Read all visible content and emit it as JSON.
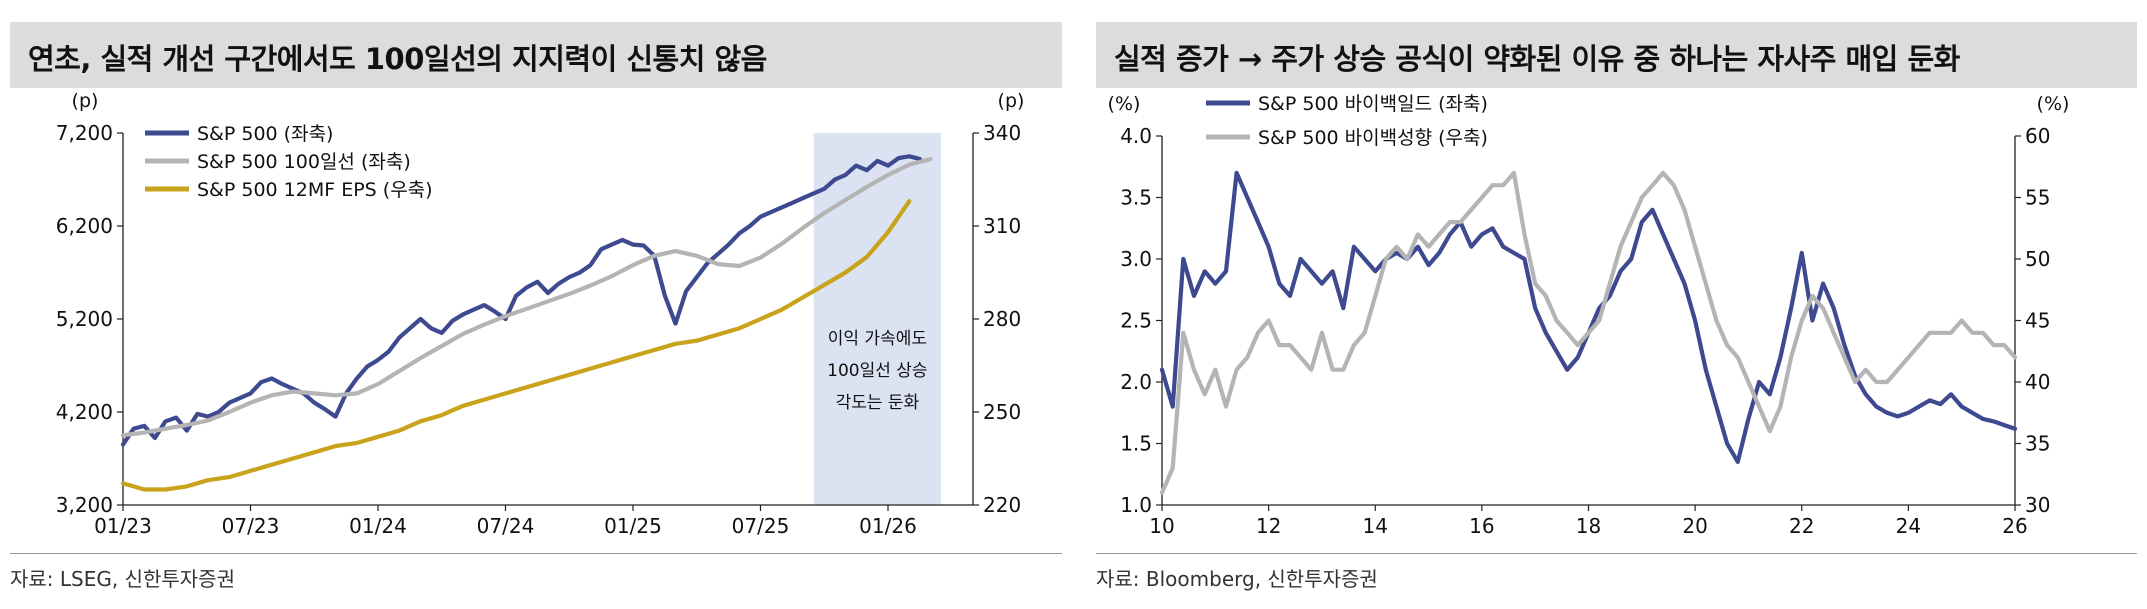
{
  "charts": [
    {
      "title": "연초, 실적 개선 구간에서도 100일선의 지지력이 신통치 않음",
      "source": "자료: LSEG, 신한투자증권",
      "chart_data": {
        "type": "line",
        "left_unit": "(p)",
        "right_unit": "(p)",
        "left_ylim": [
          3200,
          7200
        ],
        "left_yticks": [
          "3,200",
          "4,200",
          "5,200",
          "6,200",
          "7,200"
        ],
        "right_ylim": [
          220,
          340
        ],
        "right_yticks": [
          "220",
          "250",
          "280",
          "310",
          "340"
        ],
        "xlim": [
          0,
          40
        ],
        "xtick_positions": [
          0,
          6,
          12,
          18,
          24,
          30,
          36
        ],
        "xtick_labels": [
          "01/23",
          "07/23",
          "01/24",
          "07/24",
          "01/25",
          "07/25",
          "01/26"
        ],
        "shaded_region": {
          "from": 32.5,
          "to": 38.5,
          "color": "#dbe3f3"
        },
        "annotation": [
          "이익 가속에도",
          "100일선 상승",
          "각도는 둔화"
        ],
        "series": [
          {
            "name": "S&P 500 (좌축)",
            "color": "#3d4a8f",
            "axis": "left",
            "x": [
              0,
              0.5,
              1,
              1.5,
              2,
              2.5,
              3,
              3.5,
              4,
              4.5,
              5,
              5.5,
              6,
              6.5,
              7,
              7.5,
              8,
              8.5,
              9,
              9.5,
              10,
              10.5,
              11,
              11.5,
              12,
              12.5,
              13,
              13.5,
              14,
              14.5,
              15,
              15.5,
              16,
              16.5,
              17,
              17.5,
              18,
              18.5,
              19,
              19.5,
              20,
              20.5,
              21,
              21.5,
              22,
              22.5,
              23,
              23.5,
              24,
              24.5,
              25,
              25.5,
              26,
              26.5,
              27,
              27.5,
              28,
              28.5,
              29,
              29.5,
              30,
              30.5,
              31,
              31.5,
              32,
              32.5,
              33,
              33.5,
              34,
              34.5,
              35,
              35.5,
              36,
              36.5,
              37,
              37.5
            ],
            "y": [
              3850,
              4020,
              4050,
              3920,
              4100,
              4140,
              4000,
              4180,
              4150,
              4200,
              4300,
              4350,
              4400,
              4520,
              4560,
              4500,
              4450,
              4400,
              4300,
              4230,
              4150,
              4400,
              4560,
              4690,
              4760,
              4850,
              5000,
              5100,
              5200,
              5100,
              5050,
              5180,
              5250,
              5300,
              5350,
              5280,
              5200,
              5450,
              5540,
              5600,
              5480,
              5580,
              5650,
              5700,
              5780,
              5950,
              6000,
              6050,
              6000,
              5990,
              5880,
              5450,
              5150,
              5500,
              5650,
              5800,
              5900,
              6000,
              6120,
              6200,
              6300,
              6350,
              6400,
              6450,
              6500,
              6550,
              6600,
              6700,
              6750,
              6850,
              6800,
              6900,
              6850,
              6930,
              6950,
              6920
            ]
          },
          {
            "name": "S&P 500 100일선 (좌축)",
            "color": "#b4b4b4",
            "axis": "left",
            "x": [
              0,
              1,
              2,
              3,
              4,
              5,
              6,
              7,
              8,
              9,
              10,
              11,
              12,
              13,
              14,
              15,
              16,
              17,
              18,
              19,
              20,
              21,
              22,
              23,
              24,
              25,
              26,
              27,
              28,
              29,
              30,
              31,
              32,
              33,
              34,
              35,
              36,
              37,
              38
            ],
            "y": [
              3950,
              3980,
              4020,
              4060,
              4110,
              4200,
              4300,
              4380,
              4420,
              4400,
              4380,
              4400,
              4500,
              4640,
              4780,
              4910,
              5040,
              5140,
              5230,
              5310,
              5390,
              5470,
              5560,
              5660,
              5780,
              5880,
              5930,
              5880,
              5790,
              5770,
              5860,
              6010,
              6180,
              6340,
              6480,
              6620,
              6750,
              6860,
              6920
            ]
          },
          {
            "name": "S&P 500 12MF EPS (우축)",
            "color": "#c8a31b",
            "axis": "right",
            "x": [
              0,
              1,
              2,
              3,
              4,
              5,
              6,
              7,
              8,
              9,
              10,
              11,
              12,
              13,
              14,
              15,
              16,
              17,
              18,
              19,
              20,
              21,
              22,
              23,
              24,
              25,
              26,
              27,
              28,
              29,
              30,
              31,
              32,
              33,
              34,
              35,
              36,
              37
            ],
            "y": [
              227,
              225,
              225,
              226,
              228,
              229,
              231,
              233,
              235,
              237,
              239,
              240,
              242,
              244,
              247,
              249,
              252,
              254,
              256,
              258,
              260,
              262,
              264,
              266,
              268,
              270,
              272,
              273,
              275,
              277,
              280,
              283,
              287,
              291,
              295,
              300,
              308,
              318
            ]
          }
        ]
      }
    },
    {
      "title": "실적 증가 → 주가 상승 공식이 약화된 이유 중 하나는 자사주 매입 둔화",
      "source": "자료: Bloomberg, 신한투자증권",
      "chart_data": {
        "type": "line",
        "left_unit": "(%)",
        "right_unit": "(%)",
        "left_ylim": [
          1.0,
          4.0
        ],
        "left_yticks": [
          "1.0",
          "1.5",
          "2.0",
          "2.5",
          "3.0",
          "3.5",
          "4.0"
        ],
        "right_ylim": [
          30,
          60
        ],
        "right_yticks": [
          "30",
          "35",
          "40",
          "45",
          "50",
          "55",
          "60"
        ],
        "xlim": [
          10,
          26
        ],
        "xtick_positions": [
          10,
          12,
          14,
          16,
          18,
          20,
          22,
          24,
          26
        ],
        "xtick_labels": [
          "10",
          "12",
          "14",
          "16",
          "18",
          "20",
          "22",
          "24",
          "26"
        ],
        "series": [
          {
            "name": "S&P 500 바이백일드 (좌축)",
            "color": "#3d4a8f",
            "axis": "left",
            "x": [
              10,
              10.2,
              10.4,
              10.6,
              10.8,
              11,
              11.2,
              11.4,
              11.6,
              11.8,
              12,
              12.2,
              12.4,
              12.6,
              12.8,
              13,
              13.2,
              13.4,
              13.6,
              13.8,
              14,
              14.2,
              14.4,
              14.6,
              14.8,
              15,
              15.2,
              15.4,
              15.6,
              15.8,
              16,
              16.2,
              16.4,
              16.6,
              16.8,
              17,
              17.2,
              17.4,
              17.6,
              17.8,
              18,
              18.2,
              18.4,
              18.6,
              18.8,
              19,
              19.2,
              19.4,
              19.6,
              19.8,
              20,
              20.2,
              20.4,
              20.6,
              20.8,
              21,
              21.2,
              21.4,
              21.6,
              21.8,
              22,
              22.2,
              22.4,
              22.6,
              22.8,
              23,
              23.2,
              23.4,
              23.6,
              23.8,
              24,
              24.2,
              24.4,
              24.6,
              24.8,
              25,
              25.2,
              25.4,
              25.6,
              25.8,
              26
            ],
            "y": [
              2.1,
              1.8,
              3.0,
              2.7,
              2.9,
              2.8,
              2.9,
              3.7,
              3.5,
              3.3,
              3.1,
              2.8,
              2.7,
              3.0,
              2.9,
              2.8,
              2.9,
              2.6,
              3.1,
              3.0,
              2.9,
              3.0,
              3.05,
              3.0,
              3.1,
              2.95,
              3.05,
              3.2,
              3.3,
              3.1,
              3.2,
              3.25,
              3.1,
              3.05,
              3.0,
              2.6,
              2.4,
              2.25,
              2.1,
              2.2,
              2.4,
              2.6,
              2.7,
              2.9,
              3.0,
              3.3,
              3.4,
              3.2,
              3.0,
              2.8,
              2.5,
              2.1,
              1.8,
              1.5,
              1.35,
              1.7,
              2.0,
              1.9,
              2.2,
              2.6,
              3.05,
              2.5,
              2.8,
              2.6,
              2.3,
              2.05,
              1.9,
              1.8,
              1.75,
              1.72,
              1.75,
              1.8,
              1.85,
              1.82,
              1.9,
              1.8,
              1.75,
              1.7,
              1.68,
              1.65,
              1.62
            ]
          },
          {
            "name": "S&P 500 바이백성향 (우축)",
            "color": "#b4b4b4",
            "axis": "right",
            "x": [
              10,
              10.2,
              10.4,
              10.6,
              10.8,
              11,
              11.2,
              11.4,
              11.6,
              11.8,
              12,
              12.2,
              12.4,
              12.6,
              12.8,
              13,
              13.2,
              13.4,
              13.6,
              13.8,
              14,
              14.2,
              14.4,
              14.6,
              14.8,
              15,
              15.2,
              15.4,
              15.6,
              15.8,
              16,
              16.2,
              16.4,
              16.6,
              16.8,
              17,
              17.2,
              17.4,
              17.6,
              17.8,
              18,
              18.2,
              18.4,
              18.6,
              18.8,
              19,
              19.2,
              19.4,
              19.6,
              19.8,
              20,
              20.2,
              20.4,
              20.6,
              20.8,
              21,
              21.2,
              21.4,
              21.6,
              21.8,
              22,
              22.2,
              22.4,
              22.6,
              22.8,
              23,
              23.2,
              23.4,
              23.6,
              23.8,
              24,
              24.2,
              24.4,
              24.6,
              24.8,
              25,
              25.2,
              25.4,
              25.6,
              25.8,
              26
            ],
            "y": [
              31,
              33,
              44,
              41,
              39,
              41,
              38,
              41,
              42,
              44,
              45,
              43,
              43,
              42,
              41,
              44,
              41,
              41,
              43,
              44,
              47,
              50,
              51,
              50,
              52,
              51,
              52,
              53,
              53,
              54,
              55,
              56,
              56,
              57,
              52,
              48,
              47,
              45,
              44,
              43,
              44,
              45,
              48,
              51,
              53,
              55,
              56,
              57,
              56,
              54,
              51,
              48,
              45,
              43,
              42,
              40,
              38,
              36,
              38,
              42,
              45,
              47,
              46,
              44,
              42,
              40,
              41,
              40,
              40,
              41,
              42,
              43,
              44,
              44,
              44,
              45,
              44,
              44,
              43,
              43,
              42
            ]
          }
        ]
      }
    }
  ]
}
